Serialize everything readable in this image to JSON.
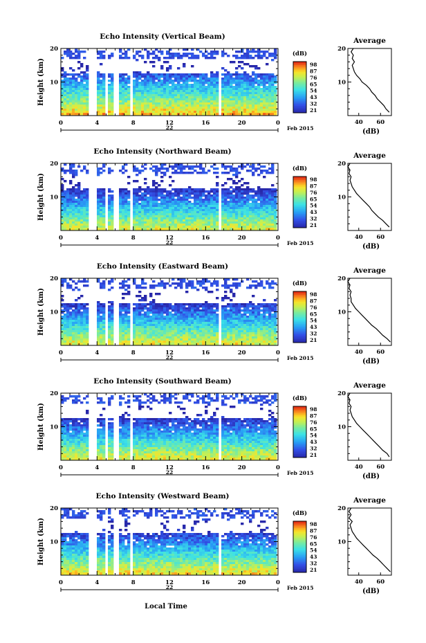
{
  "figure": {
    "date_label": "Feb 2015",
    "day_label": "22",
    "xlabel": "Local Time",
    "ylabel": "Height (km)",
    "colorbar_unit": "(dB)",
    "colorbar_ticks": [
      "98",
      "87",
      "76",
      "65",
      "54",
      "43",
      "32",
      "21"
    ],
    "avg_title": "Average",
    "avg_xlabel": "(dB)"
  },
  "chart_data": [
    {
      "type": "heatmap",
      "title": "Echo Intensity (Vertical Beam)",
      "beam": "vertical",
      "x_ticks": [
        "0",
        "4",
        "8",
        "12",
        "16",
        "20",
        "0"
      ],
      "y_ticks": [
        "20",
        "10"
      ],
      "ylim": [
        0,
        20
      ],
      "xlim_hours": [
        0,
        24
      ],
      "data_gaps_hours": [
        [
          3.0,
          3.9
        ],
        [
          4.9,
          5.3
        ],
        [
          5.9,
          6.4
        ],
        [
          7.7,
          8.1
        ],
        [
          17.5,
          17.7
        ]
      ],
      "colorbar_range_db": [
        21,
        98
      ],
      "level_profile": "strong low-level echoes (yellow/orange) below 5 km, decreasing with height; sparse echoes above 12 km",
      "avg_profile": {
        "xticks": [
          "40",
          "60"
        ],
        "xlim": [
          30,
          70
        ],
        "ylim": [
          0,
          20
        ],
        "height_km": [
          1,
          2,
          3,
          4,
          5,
          6,
          7,
          8,
          9,
          10,
          11,
          12,
          13,
          14,
          15,
          16,
          17,
          18,
          19,
          20
        ],
        "db": [
          68,
          65,
          63,
          60,
          57,
          55,
          52,
          50,
          47,
          43,
          41,
          38,
          36,
          35,
          34,
          36,
          34,
          35,
          33,
          35
        ]
      }
    },
    {
      "type": "heatmap",
      "title": "Echo Intensity (Northward Beam)",
      "beam": "north",
      "x_ticks": [
        "0",
        "4",
        "8",
        "12",
        "16",
        "20",
        "0"
      ],
      "y_ticks": [
        "20",
        "10"
      ],
      "ylim": [
        0,
        20
      ],
      "xlim_hours": [
        0,
        24
      ],
      "data_gaps_hours": [
        [
          3.0,
          3.9
        ],
        [
          4.9,
          5.3
        ],
        [
          5.9,
          6.4
        ],
        [
          7.7,
          8.1
        ],
        [
          17.5,
          17.7
        ]
      ],
      "colorbar_range_db": [
        21,
        98
      ],
      "level_profile": "moderate echoes (green) below 8 km, blue band 8-12 km, sparse above",
      "avg_profile": {
        "xticks": [
          "40",
          "60"
        ],
        "xlim": [
          30,
          70
        ],
        "ylim": [
          0,
          20
        ],
        "height_km": [
          1,
          2,
          3,
          4,
          5,
          6,
          7,
          8,
          9,
          10,
          11,
          12,
          13,
          14,
          15,
          16,
          17,
          18,
          19,
          20
        ],
        "db": [
          68,
          65,
          62,
          58,
          55,
          52,
          50,
          47,
          44,
          41,
          38,
          36,
          34,
          33,
          32,
          33,
          31,
          32,
          30,
          32
        ]
      }
    },
    {
      "type": "heatmap",
      "title": "Echo Intensity (Eastward Beam)",
      "beam": "east",
      "x_ticks": [
        "0",
        "4",
        "8",
        "12",
        "16",
        "20",
        "0"
      ],
      "y_ticks": [
        "20",
        "10"
      ],
      "ylim": [
        0,
        20
      ],
      "xlim_hours": [
        0,
        24
      ],
      "data_gaps_hours": [
        [
          3.0,
          3.9
        ],
        [
          4.9,
          5.3
        ],
        [
          5.9,
          6.4
        ],
        [
          7.7,
          8.1
        ],
        [
          17.5,
          17.7
        ]
      ],
      "colorbar_range_db": [
        21,
        98
      ],
      "level_profile": "moderate echoes below 8 km, blue band 8-12 km, sparse above",
      "avg_profile": {
        "xticks": [
          "40",
          "60"
        ],
        "xlim": [
          30,
          70
        ],
        "ylim": [
          0,
          20
        ],
        "height_km": [
          1,
          2,
          3,
          4,
          5,
          6,
          7,
          8,
          9,
          10,
          11,
          12,
          13,
          14,
          15,
          16,
          17,
          18,
          19,
          20
        ],
        "db": [
          69,
          66,
          62,
          59,
          56,
          52,
          49,
          46,
          43,
          40,
          37,
          35,
          33,
          33,
          32,
          33,
          31,
          32,
          30,
          32
        ]
      }
    },
    {
      "type": "heatmap",
      "title": "Echo Intensity (Southward Beam)",
      "beam": "south",
      "x_ticks": [
        "0",
        "4",
        "8",
        "12",
        "16",
        "20",
        "0"
      ],
      "y_ticks": [
        "20",
        "10"
      ],
      "ylim": [
        0,
        20
      ],
      "xlim_hours": [
        0,
        24
      ],
      "data_gaps_hours": [
        [
          3.0,
          3.9
        ],
        [
          4.9,
          5.3
        ],
        [
          5.9,
          6.4
        ],
        [
          7.7,
          8.1
        ],
        [
          17.5,
          17.7
        ]
      ],
      "colorbar_range_db": [
        21,
        98
      ],
      "level_profile": "moderate echoes below 8 km, blue band 8-12 km, sparse above",
      "avg_profile": {
        "xticks": [
          "40",
          "60"
        ],
        "xlim": [
          30,
          70
        ],
        "ylim": [
          0,
          20
        ],
        "height_km": [
          1,
          2,
          3,
          4,
          5,
          6,
          7,
          8,
          9,
          10,
          11,
          12,
          13,
          14,
          15,
          16,
          17,
          18,
          19,
          20
        ],
        "db": [
          68,
          66,
          62,
          59,
          56,
          53,
          50,
          47,
          44,
          41,
          38,
          36,
          34,
          33,
          32,
          33,
          31,
          32,
          30,
          32
        ]
      }
    },
    {
      "type": "heatmap",
      "title": "Echo Intensity (Westward Beam)",
      "beam": "west",
      "x_ticks": [
        "0",
        "4",
        "8",
        "12",
        "16",
        "20",
        "0"
      ],
      "y_ticks": [
        "20",
        "10"
      ],
      "ylim": [
        0,
        20
      ],
      "xlim_hours": [
        0,
        24
      ],
      "data_gaps_hours": [
        [
          3.0,
          3.9
        ],
        [
          4.9,
          5.3
        ],
        [
          5.9,
          6.4
        ],
        [
          7.7,
          8.1
        ],
        [
          17.5,
          17.7
        ]
      ],
      "colorbar_range_db": [
        21,
        98
      ],
      "level_profile": "moderate-strong echoes below 6 km, blue band 8-12 km, sparse above",
      "avg_profile": {
        "xticks": [
          "40",
          "60"
        ],
        "xlim": [
          30,
          70
        ],
        "ylim": [
          0,
          20
        ],
        "height_km": [
          1,
          2,
          3,
          4,
          5,
          6,
          7,
          8,
          9,
          10,
          11,
          12,
          13,
          14,
          15,
          16,
          17,
          18,
          19,
          20
        ],
        "db": [
          69,
          66,
          63,
          60,
          57,
          53,
          50,
          47,
          44,
          41,
          38,
          36,
          34,
          33,
          32,
          34,
          31,
          33,
          31,
          33
        ]
      }
    }
  ]
}
